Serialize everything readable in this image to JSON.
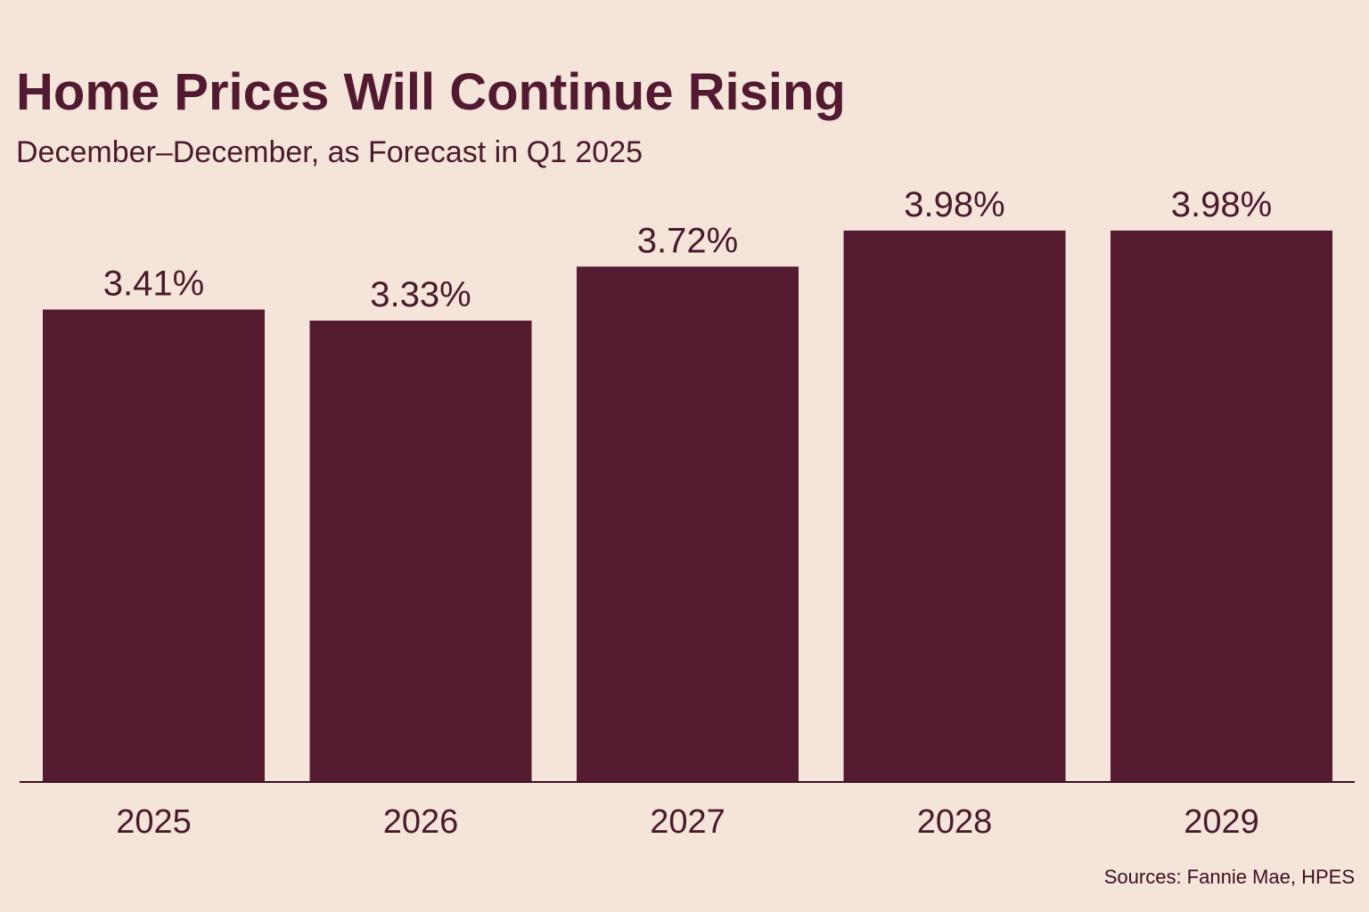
{
  "chart_data": {
    "type": "bar",
    "title": "Home Prices Will Continue Rising",
    "subtitle": "December–December, as Forecast in Q1 2025",
    "categories": [
      "2025",
      "2026",
      "2027",
      "2028",
      "2029"
    ],
    "values": [
      3.41,
      3.33,
      3.72,
      3.98,
      3.98
    ],
    "value_labels": [
      "3.41%",
      "3.33%",
      "3.72%",
      "3.98%",
      "3.98%"
    ],
    "xlabel": "",
    "ylabel": "",
    "ylim": [
      0,
      4.5
    ],
    "grid": false,
    "legend": "none",
    "bar_color": "#551b31",
    "source": "Sources: Fannie Mae, HPES"
  }
}
